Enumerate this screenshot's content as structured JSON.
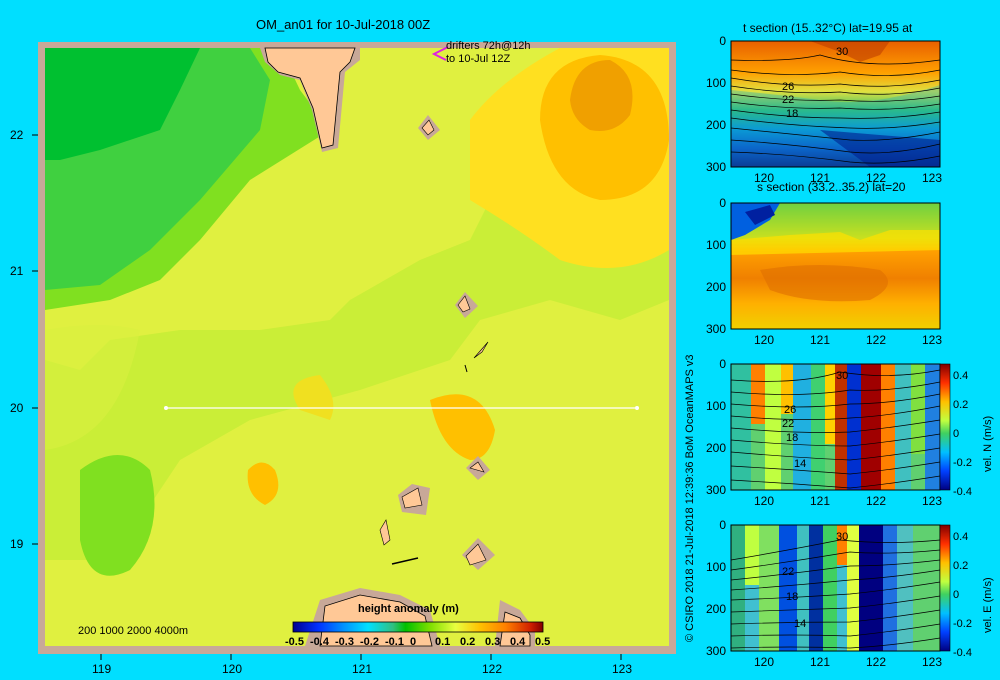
{
  "map": {
    "title": "OM_an01 for 10-Jul-2018 00Z",
    "drifters_line1": "drifters 72h@12h",
    "drifters_line2": "to 10-Jul 12Z",
    "depth_legend": "200  1000  2000  4000m",
    "lon_ticks": [
      "119",
      "120",
      "121",
      "122",
      "123"
    ],
    "lat_ticks": [
      "22",
      "21",
      "20",
      "19"
    ],
    "section_line": {
      "lat": 20,
      "lon_start": 119.5,
      "lon_end": 123.2
    }
  },
  "colorbar": {
    "title": "height anomaly (m)",
    "ticks": [
      "-0.5",
      "-0.4",
      "-0.3",
      "-0.2",
      "-0.1",
      "0",
      "0.1",
      "0.2",
      "0.3",
      "0.4",
      "0.5"
    ],
    "min": -0.5,
    "max": 0.5
  },
  "panels": [
    {
      "title": "t section (15..32°C) lat=19.95 at",
      "contour_labels": [
        "30",
        "26",
        "22",
        "18"
      ],
      "x_ticks": [
        "120",
        "121",
        "122",
        "123"
      ],
      "y_ticks": [
        "0",
        "100",
        "200",
        "300"
      ]
    },
    {
      "title": "s section (33.2..35.2) lat=20",
      "x_ticks": [
        "120",
        "121",
        "122",
        "123"
      ],
      "y_ticks": [
        "0",
        "100",
        "200",
        "300"
      ]
    },
    {
      "contour_labels": [
        "30",
        "26",
        "22",
        "18",
        "14"
      ],
      "x_ticks": [
        "120",
        "121",
        "122",
        "123"
      ],
      "y_ticks": [
        "0",
        "100",
        "200",
        "300"
      ],
      "cbar_ticks": [
        "0.4",
        "0.2",
        "0",
        "-0.2",
        "-0.4"
      ],
      "cbar_label": "vel. N  (m/s)"
    },
    {
      "contour_labels": [
        "30",
        "22",
        "18",
        "14"
      ],
      "x_ticks": [
        "120",
        "121",
        "122",
        "123"
      ],
      "y_ticks": [
        "0",
        "100",
        "200",
        "300"
      ],
      "cbar_ticks": [
        "0.4",
        "0.2",
        "0",
        "-0.2",
        "-0.4"
      ],
      "cbar_label": "vel. E  (m/s)"
    }
  ],
  "credit": "© CSIRO 2018    21-Jul-2018 12:39:36 BoM OceanMAPS v3",
  "colors": {
    "background": "#00dfff",
    "land": "#ffc896",
    "shelf": "#c8a898"
  }
}
